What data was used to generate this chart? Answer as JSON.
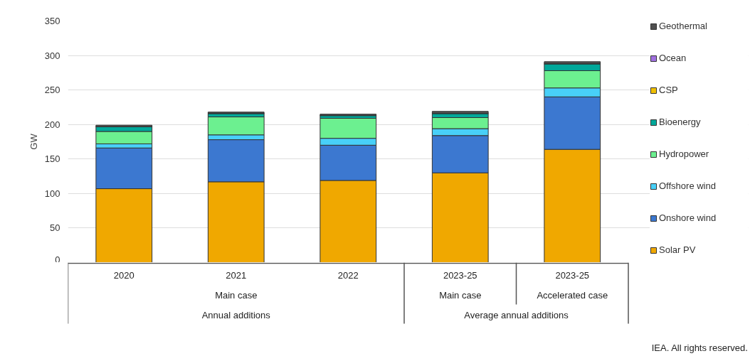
{
  "chart_data": {
    "type": "bar",
    "stacked": true,
    "ylabel": "GW",
    "categories": [
      "2020",
      "2021",
      "2022",
      "2023-25",
      "2023-25"
    ],
    "ylim": [
      0,
      350
    ],
    "yticks": [
      0,
      50,
      100,
      150,
      200,
      250,
      300,
      350
    ],
    "grid": "y",
    "legend": "right",
    "annotations": [
      "Main case",
      "Main case",
      "Accelerated case",
      "Annual additions",
      "Average annual additions",
      "IEA. All rights reserved."
    ],
    "series": [
      {
        "name": "Solar PV",
        "color": "#f0a800",
        "values": [
          107,
          117,
          119,
          130,
          164
        ]
      },
      {
        "name": "Onshore wind",
        "color": "#3c78d0",
        "values": [
          59,
          61,
          51,
          54,
          76
        ]
      },
      {
        "name": "Offshore wind",
        "color": "#48d0f8",
        "values": [
          6,
          7,
          10,
          10,
          13
        ]
      },
      {
        "name": "Hydropower",
        "color": "#6cf090",
        "values": [
          18,
          26,
          29,
          16,
          25
        ]
      },
      {
        "name": "Bioenergy",
        "color": "#00a89a",
        "values": [
          7,
          5,
          4,
          6,
          10
        ]
      },
      {
        "name": "CSP",
        "color": "#f0c000",
        "values": [
          0,
          0,
          0,
          0,
          0
        ]
      },
      {
        "name": "Ocean",
        "color": "#a070e0",
        "values": [
          0,
          0,
          0,
          0,
          0
        ]
      },
      {
        "name": "Geothermal",
        "color": "#505050",
        "values": [
          2,
          2,
          2,
          3,
          3
        ]
      }
    ]
  }
}
